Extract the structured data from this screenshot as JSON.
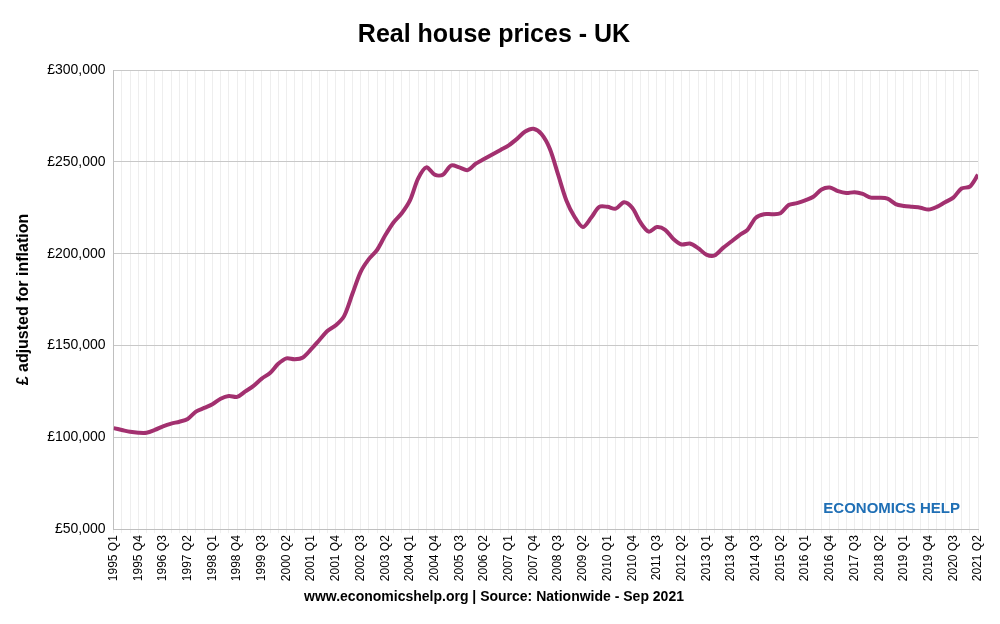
{
  "chart_data": {
    "type": "line",
    "title": "Real house prices - UK",
    "y_label": "£ adjusted for inflation",
    "caption": "www.economicshelp.org | Source: Nationwide - Sep 2021",
    "watermark": "ECONOMICS HELP",
    "color": "#a2306f",
    "grid": true,
    "categories": [
      "1995 Q1",
      null,
      null,
      "1995 Q4",
      null,
      null,
      "1996 Q3",
      null,
      null,
      "1997 Q2",
      null,
      null,
      "1998 Q1",
      null,
      null,
      "1998 Q4",
      null,
      null,
      "1999 Q3",
      null,
      null,
      "2000 Q2",
      null,
      null,
      "2001 Q1",
      null,
      null,
      "2001 Q4",
      null,
      null,
      "2002 Q3",
      null,
      null,
      "2003 Q2",
      null,
      null,
      "2004 Q1",
      null,
      null,
      "2004 Q4",
      null,
      null,
      "2005 Q3",
      null,
      null,
      "2006 Q2",
      null,
      null,
      "2007 Q1",
      null,
      null,
      "2007 Q4",
      null,
      null,
      "2008 Q3",
      null,
      null,
      "2009 Q2",
      null,
      null,
      "2010 Q1",
      null,
      null,
      "2010 Q4",
      null,
      null,
      "2011 Q3",
      null,
      null,
      "2012 Q2",
      null,
      null,
      "2013 Q1",
      null,
      null,
      "2013 Q4",
      null,
      null,
      "2014 Q3",
      null,
      null,
      "2015 Q2",
      null,
      null,
      "2016 Q1",
      null,
      null,
      "2016 Q4",
      null,
      null,
      "2017 Q3",
      null,
      null,
      "2018 Q2",
      null,
      null,
      "2019 Q1",
      null,
      null,
      "2019 Q4",
      null,
      null,
      "2020 Q3",
      null,
      null,
      "2021 Q2"
    ],
    "values": [
      105000,
      104000,
      103000,
      102500,
      102500,
      104000,
      106000,
      107500,
      108500,
      110000,
      114000,
      116000,
      118000,
      121000,
      122500,
      122000,
      125000,
      128000,
      132000,
      135000,
      140000,
      143000,
      142500,
      143500,
      148000,
      153000,
      158000,
      161000,
      166000,
      178000,
      190000,
      197000,
      202000,
      210000,
      217000,
      222000,
      229000,
      241000,
      247000,
      243000,
      243000,
      248000,
      247000,
      245500,
      249000,
      251500,
      254000,
      256500,
      259000,
      262500,
      266500,
      268000,
      265000,
      257000,
      243000,
      229000,
      220000,
      214500,
      219500,
      225500,
      225500,
      224500,
      228000,
      225000,
      217000,
      212000,
      214500,
      213000,
      208000,
      205000,
      205500,
      203000,
      199500,
      199000,
      203000,
      206500,
      210000,
      213000,
      219500,
      221500,
      221500,
      222000,
      226500,
      227500,
      229000,
      231000,
      235000,
      236000,
      234000,
      233000,
      233500,
      232500,
      230500,
      230500,
      230000,
      227000,
      226000,
      225500,
      225000,
      224000,
      225500,
      228000,
      230500,
      235500,
      236500,
      243000
    ],
    "ylim": [
      50000,
      300000
    ],
    "yticks": [
      {
        "value": 50000,
        "label": "£50,000"
      },
      {
        "value": 100000,
        "label": "£100,000"
      },
      {
        "value": 150000,
        "label": "£150,000"
      },
      {
        "value": 200000,
        "label": "£200,000"
      },
      {
        "value": 250000,
        "label": "£250,000"
      },
      {
        "value": 300000,
        "label": "£300,000"
      }
    ]
  }
}
